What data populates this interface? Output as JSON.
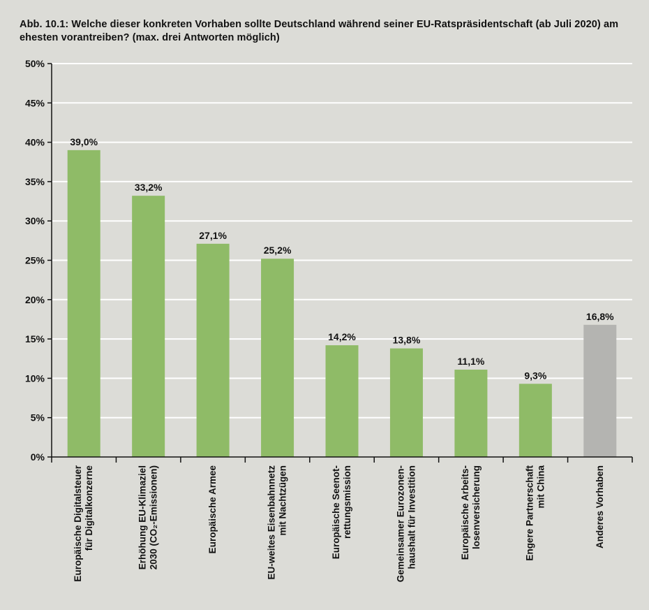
{
  "title": {
    "line1": "Abb. 10.1: Welche dieser konkreten Vorhaben sollte Deutschland während seiner EU-Ratspräsidentschaft (ab Juli 2020) am",
    "line2": "ehesten vorantreiben? (max. drei Antworten möglich)"
  },
  "colors": {
    "background": "#dcdcd7",
    "bar_primary": "#8fbb67",
    "bar_other": "#b4b4b1",
    "grid": "#ffffff",
    "axis": "#111111"
  },
  "chart_data": {
    "type": "bar",
    "ylim": [
      0,
      50
    ],
    "y_ticks": [
      "0%",
      "5%",
      "10%",
      "15%",
      "20%",
      "25%",
      "30%",
      "35%",
      "40%",
      "45%",
      "50%"
    ],
    "grid": true,
    "categories": [
      [
        "Europäische Digitalsteuer",
        "für Digitalkonzerne"
      ],
      [
        "Erhöhung EU-Klimaziel",
        "2030 (CO₂-Emissionen)"
      ],
      [
        "Europäische Armee"
      ],
      [
        "EU-weites Eisenbahnnetz",
        "mit Nachtzügen"
      ],
      [
        "Europäische Seenot-",
        "rettungsmission"
      ],
      [
        "Gemeinsamer Eurozonen-",
        "haushalt für Investition"
      ],
      [
        "Europäische Arbeits-",
        "losenversicherung"
      ],
      [
        "Engere Partnerschaft",
        "mit China"
      ],
      [
        "Anderes Vorhaben"
      ]
    ],
    "values": [
      39.0,
      33.2,
      27.1,
      25.2,
      14.2,
      13.8,
      11.1,
      9.3,
      16.8
    ],
    "value_labels": [
      "39,0%",
      "33,2%",
      "27,1%",
      "25,2%",
      "14,2%",
      "13,8%",
      "11,1%",
      "9,3%",
      "16,8%"
    ],
    "bar_colors": [
      "primary",
      "primary",
      "primary",
      "primary",
      "primary",
      "primary",
      "primary",
      "primary",
      "other"
    ]
  }
}
